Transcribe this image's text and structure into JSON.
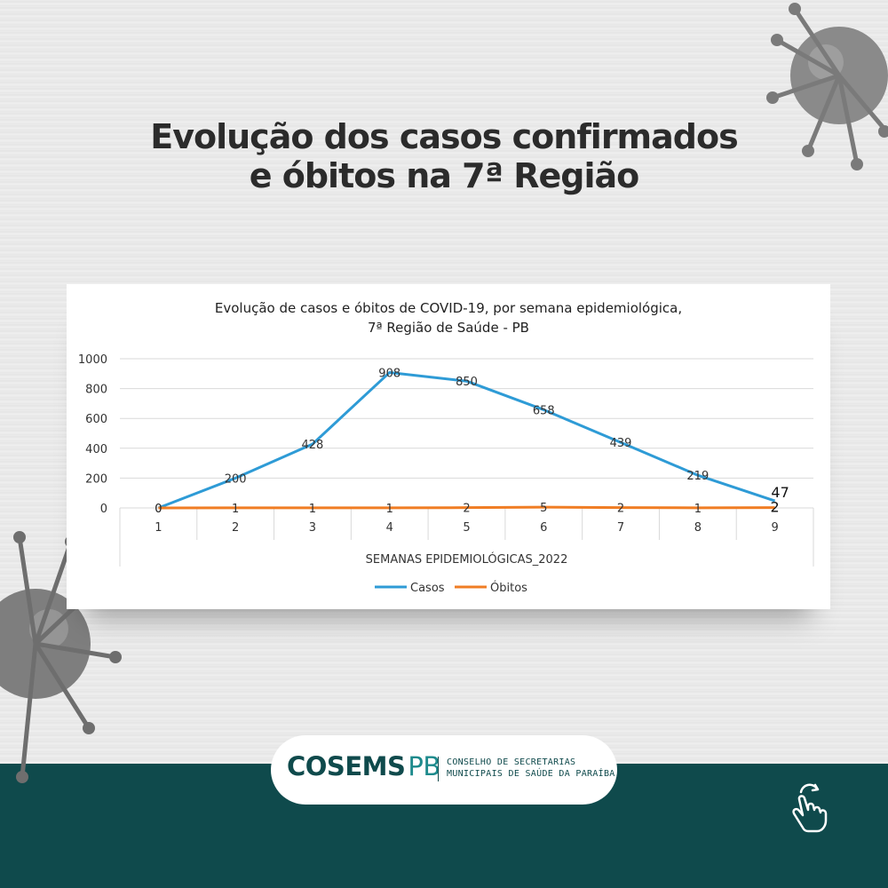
{
  "headline": {
    "line1": "Evolução dos casos confirmados",
    "line2": "e óbitos na 7ª Região"
  },
  "chart_data": {
    "type": "line",
    "title_line1": "Evolução de casos e óbitos de COVID-19, por semana epidemiológica,",
    "title_line2": "7ª Região de Saúde - PB",
    "xlabel": "SEMANAS EPIDEMIOLÓGICAS_2022",
    "ylabel": "",
    "categories": [
      "1",
      "2",
      "3",
      "4",
      "5",
      "6",
      "7",
      "8",
      "9"
    ],
    "y_ticks": [
      "0",
      "200",
      "400",
      "600",
      "800",
      "1000"
    ],
    "ylim": [
      0,
      1000
    ],
    "grid": true,
    "legend_position": "bottom",
    "series": [
      {
        "name": "Casos",
        "color": "#2e9bd6",
        "values": [
          0,
          200,
          428,
          908,
          850,
          658,
          439,
          219,
          47
        ]
      },
      {
        "name": "Óbitos",
        "color": "#f07d24",
        "values": [
          0,
          1,
          1,
          1,
          2,
          5,
          2,
          1,
          2
        ]
      }
    ]
  },
  "logo": {
    "main": "COSEMS",
    "suffix": "PB",
    "sub_line1": "CONSELHO DE SECRETARIAS",
    "sub_line2": "MUNICIPAIS DE SAÚDE DA PARAÍBA"
  },
  "icons": {
    "virus": "virus-icon",
    "hand": "hand-swipe-icon"
  }
}
